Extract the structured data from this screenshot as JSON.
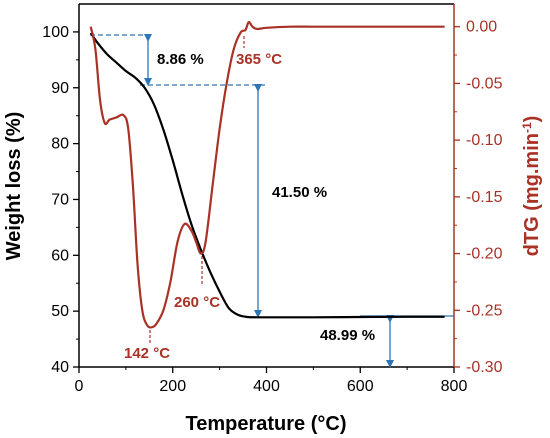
{
  "chart_data": {
    "type": "line",
    "xlabel": "Temperature (°C)",
    "ylabel_left": "Weight loss (%)",
    "ylabel_right_main": "dTG (mg.min",
    "ylabel_right_sup": "-1",
    "ylabel_right_close": ")",
    "xlim": [
      0,
      800
    ],
    "ylim_left": [
      40,
      105
    ],
    "ylim_right": [
      -0.3,
      0.02
    ],
    "x_ticks": [
      "0",
      "200",
      "400",
      "600",
      "800"
    ],
    "x_tick_values": [
      0,
      200,
      400,
      600,
      800
    ],
    "y_left_ticks": [
      "40",
      "50",
      "60",
      "70",
      "80",
      "90",
      "100"
    ],
    "y_left_tick_values": [
      40,
      50,
      60,
      70,
      80,
      90,
      100
    ],
    "y_right_ticks": [
      "0.00",
      "-0.05",
      "-0.10",
      "-0.15",
      "-0.20",
      "-0.25",
      "-0.30"
    ],
    "y_right_tick_values": [
      0.0,
      -0.05,
      -0.1,
      -0.15,
      -0.2,
      -0.25,
      -0.3
    ],
    "grid": false,
    "colors": {
      "tg": "#000000",
      "dtg": "#a93226",
      "arrow": "#2e75b6",
      "axis_right": "#a93226"
    },
    "series": [
      {
        "axis": "left",
        "color": "#000000",
        "x": [
          25,
          40,
          60,
          80,
          100,
          120,
          140,
          160,
          180,
          200,
          220,
          240,
          260,
          280,
          300,
          320,
          340,
          360,
          380,
          400,
          450,
          500,
          600,
          700,
          780
        ],
        "y": [
          99.8,
          98.0,
          96.0,
          94.5,
          93.0,
          91.8,
          90.0,
          87.0,
          82.5,
          77.0,
          71.0,
          65.5,
          61.0,
          57.0,
          53.5,
          50.5,
          49.3,
          48.95,
          48.9,
          48.9,
          48.9,
          48.9,
          48.95,
          49.0,
          49.0
        ]
      },
      {
        "axis": "right",
        "color": "#a93226",
        "x": [
          25,
          35,
          45,
          55,
          65,
          80,
          95,
          105,
          115,
          125,
          135,
          145,
          155,
          165,
          180,
          195,
          210,
          225,
          240,
          250,
          260,
          270,
          285,
          300,
          315,
          330,
          345,
          355,
          362,
          370,
          380,
          400,
          450,
          500,
          600,
          700,
          780
        ],
        "y": [
          0.0,
          -0.02,
          -0.065,
          -0.085,
          -0.082,
          -0.08,
          -0.078,
          -0.09,
          -0.14,
          -0.21,
          -0.25,
          -0.263,
          -0.265,
          -0.262,
          -0.25,
          -0.225,
          -0.19,
          -0.174,
          -0.18,
          -0.19,
          -0.2,
          -0.19,
          -0.14,
          -0.09,
          -0.05,
          -0.02,
          -0.005,
          -0.003,
          0.004,
          0.0,
          -0.002,
          -0.001,
          0.0,
          0.0,
          0.0,
          0.0,
          0.0
        ]
      }
    ],
    "annotations": [
      {
        "text": "8.86 %",
        "color": "#000000"
      },
      {
        "text": "41.50 %",
        "color": "#000000"
      },
      {
        "text": "48.99 %",
        "color": "#000000"
      },
      {
        "text": "142 °C",
        "color": "#a93226"
      },
      {
        "text": "260 °C",
        "color": "#a93226"
      },
      {
        "text": "365 °C",
        "color": "#a93226"
      }
    ]
  }
}
